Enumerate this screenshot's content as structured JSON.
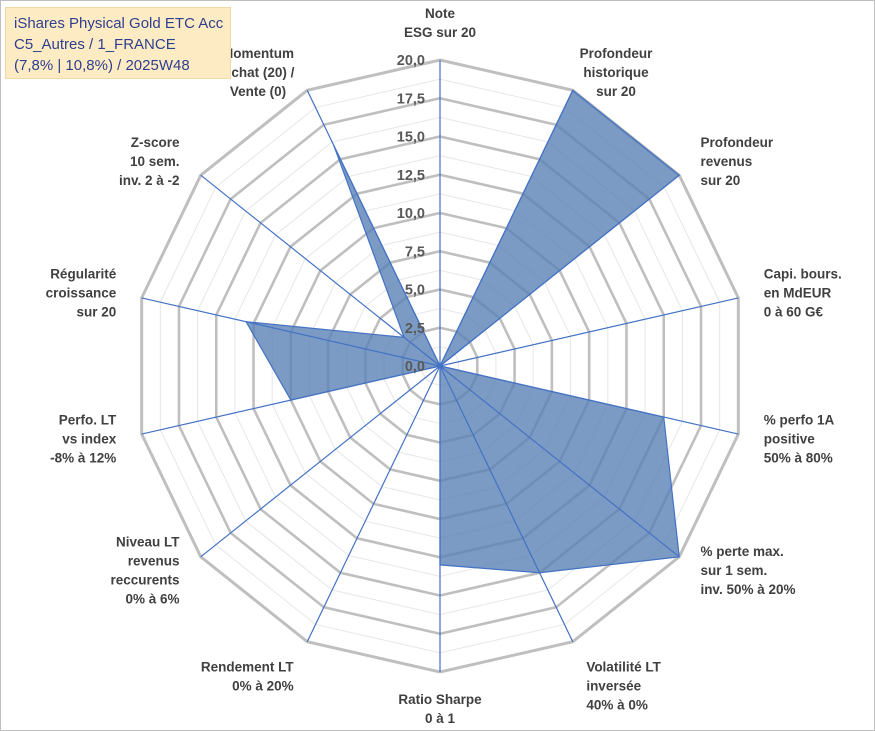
{
  "title_box": {
    "line1": "iShares Physical Gold ETC Acc",
    "line2": "C5_Autres / 1_FRANCE",
    "line3": "(7,8% | 10,8%) / 2025W48"
  },
  "colors": {
    "fill": "#5a82b5",
    "outline": "#4472c4",
    "spoke": "#4472c4",
    "ring_major": "#bfbfbf",
    "ring_minor": "#e6e6e6"
  },
  "chart_data": {
    "type": "radar",
    "rmin": 0,
    "rmax": 20,
    "tick_labels": [
      "0,0",
      "2,5",
      "5,0",
      "7,5",
      "10,0",
      "12,5",
      "15,0",
      "17,5",
      "20,0"
    ],
    "axes": [
      [
        "Note",
        "ESG sur 20"
      ],
      [
        "Profondeur",
        "historique",
        "sur 20"
      ],
      [
        "Profondeur",
        "revenus",
        "sur 20"
      ],
      [
        "Capi. bours.",
        "en MdEUR",
        "0 à 60 G€"
      ],
      [
        "% perfo 1A",
        "positive",
        "50% à 80%"
      ],
      [
        "% perte max.",
        "sur 1 sem.",
        "inv. 50% à 20%"
      ],
      [
        "Volatilité LT",
        "inversée",
        "40% à 0%"
      ],
      [
        "Ratio Sharpe",
        "0 à 1"
      ],
      [
        "Rendement LT",
        "0% à 20%"
      ],
      [
        "Niveau LT",
        "revenus",
        "reccurents",
        "0% à 6%"
      ],
      [
        "Perfo. LT",
        "vs index",
        "-8% à 12%"
      ],
      [
        "Régularité",
        "croissance",
        "sur 20"
      ],
      [
        "Z-score",
        "10 sem.",
        "inv. 2 à -2"
      ],
      [
        "Momentum",
        "Achat (20) /",
        "Vente (0)"
      ]
    ],
    "series": [
      {
        "values": [
          0,
          20,
          20,
          0,
          15,
          20,
          15,
          13,
          0,
          0,
          10,
          13,
          3,
          16
        ]
      }
    ]
  }
}
